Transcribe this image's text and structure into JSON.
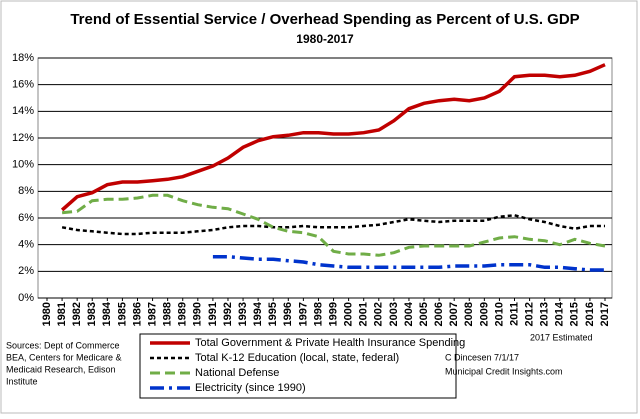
{
  "chart_data": {
    "type": "line",
    "title": "Trend of Essential Service / Overhead Spending as Percent of U.S. GDP",
    "subtitle": "1980-2017",
    "categories": [
      "1980",
      "1981",
      "1982",
      "1983",
      "1984",
      "1985",
      "1986",
      "1987",
      "1988",
      "1989",
      "1990",
      "1991",
      "1992",
      "1993",
      "1994",
      "1995",
      "1996",
      "1997",
      "1998",
      "1999",
      "2000",
      "2001",
      "2002",
      "2003",
      "2004",
      "2005",
      "2006",
      "2007",
      "2008",
      "2009",
      "2010",
      "2011",
      "2012",
      "2013",
      "2014",
      "2015",
      "2016",
      "2017"
    ],
    "ylim": [
      0,
      18
    ],
    "yticks": [
      {
        "value": 0,
        "label": "0%"
      },
      {
        "value": 2,
        "label": "2%"
      },
      {
        "value": 4,
        "label": "4%"
      },
      {
        "value": 6,
        "label": "6%"
      },
      {
        "value": 8,
        "label": "8%"
      },
      {
        "value": 10,
        "label": "10%"
      },
      {
        "value": 12,
        "label": "12%"
      },
      {
        "value": 14,
        "label": "14%"
      },
      {
        "value": 16,
        "label": "16%"
      },
      {
        "value": 18,
        "label": "18%"
      }
    ],
    "grid": true,
    "series": [
      {
        "name": "Total Government & Private Health Insurance Spending",
        "color": "#c00000",
        "dash": "solid",
        "values": [
          null,
          6.6,
          7.6,
          7.9,
          8.5,
          8.7,
          8.7,
          8.8,
          8.9,
          9.1,
          9.5,
          9.9,
          10.5,
          11.3,
          11.8,
          12.1,
          12.2,
          12.4,
          12.4,
          12.3,
          12.3,
          12.4,
          12.6,
          13.3,
          14.2,
          14.6,
          14.8,
          14.9,
          14.8,
          15.0,
          15.5,
          16.6,
          16.7,
          16.7,
          16.6,
          16.7,
          17.0,
          17.5
        ]
      },
      {
        "name": "Total K-12 Education (local, state, federal)",
        "color": "#000000",
        "dash": "dashed",
        "values": [
          null,
          5.3,
          5.1,
          5.0,
          4.9,
          4.8,
          4.8,
          4.9,
          4.9,
          4.9,
          5.0,
          5.1,
          5.3,
          5.4,
          5.4,
          5.3,
          5.3,
          5.4,
          5.3,
          5.3,
          5.3,
          5.4,
          5.5,
          5.7,
          5.9,
          5.8,
          5.7,
          5.8,
          5.8,
          5.8,
          6.1,
          6.2,
          5.9,
          5.7,
          5.4,
          5.2,
          5.4,
          5.4
        ]
      },
      {
        "name": "National Defense",
        "color": "#70ad47",
        "dash": "long-dash",
        "values": [
          null,
          6.4,
          6.5,
          7.3,
          7.4,
          7.4,
          7.5,
          7.7,
          7.7,
          7.3,
          7.0,
          6.8,
          6.7,
          6.3,
          5.9,
          5.3,
          5.0,
          4.9,
          4.6,
          3.5,
          3.3,
          3.3,
          3.2,
          3.4,
          3.8,
          3.9,
          3.9,
          3.9,
          3.9,
          4.2,
          4.5,
          4.6,
          4.4,
          4.3,
          4.0,
          4.4,
          4.1,
          3.9
        ]
      },
      {
        "name": "Electricity (since 1990)",
        "color": "#0033cc",
        "dash": "dash-dot",
        "values": [
          null,
          null,
          null,
          null,
          null,
          null,
          null,
          null,
          null,
          null,
          null,
          3.1,
          3.1,
          3.0,
          2.9,
          2.9,
          2.8,
          2.7,
          2.5,
          2.4,
          2.3,
          2.3,
          2.3,
          2.3,
          2.3,
          2.3,
          2.3,
          2.4,
          2.4,
          2.4,
          2.5,
          2.5,
          2.5,
          2.3,
          2.3,
          2.2,
          2.1,
          2.1
        ]
      }
    ],
    "note": "2017 Estimated",
    "sources": [
      "Sources: Dept of Commerce",
      "BEA, Centers for Medicare &",
      "Medicaid Research, Edison",
      "Institute"
    ],
    "credit": [
      "C Dincesen 7/1/17",
      "Municipal Credit Insights.com"
    ]
  }
}
